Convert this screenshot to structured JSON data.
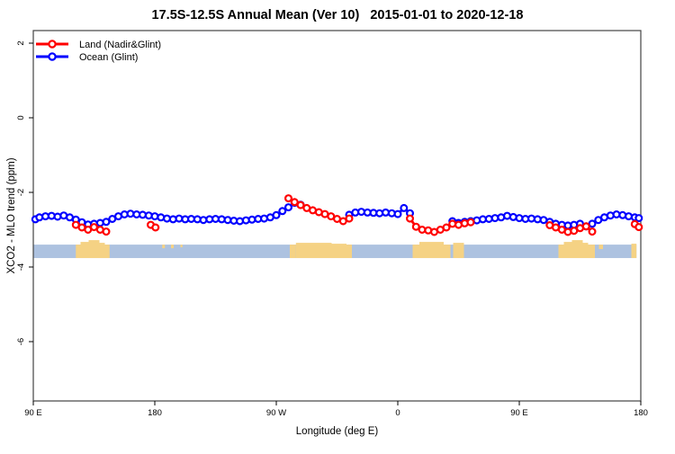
{
  "title": "17.5S-12.5S Annual Mean (Ver 10)   2015-01-01 to 2020-12-18",
  "axes": {
    "xlabel": "Longitude (deg E)",
    "ylabel": "XCO2 - MLO trend (ppm)"
  },
  "legend": {
    "items": [
      {
        "label": "Land (Nadir&Glint)",
        "color": "#ff0000"
      },
      {
        "label": "Ocean (Glint)",
        "color": "#0000ff"
      }
    ]
  },
  "colors": {
    "land_series": "#ff0000",
    "ocean_series": "#0000ff",
    "map_ocean_band": "#adc2e0",
    "map_land_patch": "#f5d284",
    "axis": "#444444"
  },
  "chart_data": {
    "type": "line",
    "title": "17.5S-12.5S Annual Mean (Ver 10)   2015-01-01 to 2020-12-18",
    "xlabel": "Longitude (deg E)",
    "ylabel": "XCO2 - MLO trend (ppm)",
    "x_range": [
      90,
      540
    ],
    "y_view_range": [
      2.34,
      -7.6
    ],
    "x_ticks": [
      {
        "p": 90,
        "label": "90 E"
      },
      {
        "p": 180,
        "label": "180"
      },
      {
        "p": 270,
        "label": "90 W"
      },
      {
        "p": 360,
        "label": "0"
      },
      {
        "p": 450,
        "label": "90 E"
      },
      {
        "p": 540,
        "label": "180"
      }
    ],
    "y_ticks": [
      {
        "v": 2,
        "label": "2"
      },
      {
        "v": 0,
        "label": "0"
      },
      {
        "v": -2,
        "label": "-2"
      },
      {
        "v": -4,
        "label": "-4"
      },
      {
        "v": -6,
        "label": "-6"
      }
    ],
    "series": [
      {
        "name": "Ocean (Glint)",
        "color": "#0000ff",
        "segments": [
          [
            [
              91.5,
              -2.72
            ],
            [
              94.5,
              -2.67
            ],
            [
              99,
              -2.64
            ],
            [
              103.5,
              -2.63
            ],
            [
              108,
              -2.65
            ],
            [
              112.5,
              -2.62
            ],
            [
              117,
              -2.67
            ],
            [
              121.5,
              -2.73
            ],
            [
              126,
              -2.8
            ],
            [
              130.5,
              -2.86
            ],
            [
              135,
              -2.84
            ],
            [
              139.5,
              -2.82
            ],
            [
              144,
              -2.79
            ],
            [
              148.5,
              -2.71
            ],
            [
              153,
              -2.64
            ],
            [
              157.5,
              -2.59
            ],
            [
              162,
              -2.57
            ],
            [
              166.5,
              -2.59
            ],
            [
              171,
              -2.6
            ],
            [
              175.5,
              -2.62
            ],
            [
              180,
              -2.64
            ],
            [
              184.5,
              -2.67
            ],
            [
              189,
              -2.7
            ],
            [
              193.5,
              -2.72
            ],
            [
              198,
              -2.7
            ],
            [
              202.5,
              -2.72
            ],
            [
              207,
              -2.71
            ],
            [
              211.5,
              -2.72
            ],
            [
              216,
              -2.74
            ],
            [
              220.5,
              -2.72
            ],
            [
              225,
              -2.71
            ],
            [
              229.5,
              -2.72
            ],
            [
              234,
              -2.74
            ],
            [
              238.5,
              -2.76
            ],
            [
              243,
              -2.77
            ],
            [
              247.5,
              -2.75
            ],
            [
              252,
              -2.73
            ],
            [
              256.5,
              -2.71
            ],
            [
              261,
              -2.7
            ],
            [
              265.5,
              -2.67
            ],
            [
              270,
              -2.61
            ],
            [
              274.5,
              -2.5
            ],
            [
              279,
              -2.4
            ],
            [
              283.5,
              -2.28
            ],
            [
              288,
              -2.33
            ]
          ],
          [
            [
              324,
              -2.6
            ],
            [
              328.5,
              -2.54
            ],
            [
              333,
              -2.52
            ],
            [
              337.5,
              -2.54
            ],
            [
              342,
              -2.55
            ],
            [
              346.5,
              -2.56
            ],
            [
              351,
              -2.54
            ],
            [
              355.5,
              -2.56
            ],
            [
              360,
              -2.58
            ],
            [
              364.5,
              -2.42
            ],
            [
              369,
              -2.56
            ]
          ],
          [
            [
              400.5,
              -2.77
            ],
            [
              405,
              -2.82
            ],
            [
              409.5,
              -2.79
            ],
            [
              414,
              -2.77
            ],
            [
              418.5,
              -2.75
            ],
            [
              423,
              -2.72
            ],
            [
              427.5,
              -2.71
            ],
            [
              432,
              -2.69
            ],
            [
              436.5,
              -2.67
            ],
            [
              441,
              -2.63
            ],
            [
              445.5,
              -2.66
            ],
            [
              450,
              -2.69
            ],
            [
              454.5,
              -2.71
            ],
            [
              459,
              -2.7
            ],
            [
              463.5,
              -2.72
            ],
            [
              468,
              -2.74
            ],
            [
              472.5,
              -2.79
            ],
            [
              477,
              -2.84
            ],
            [
              481.5,
              -2.87
            ],
            [
              486,
              -2.89
            ],
            [
              490.5,
              -2.87
            ],
            [
              495,
              -2.84
            ],
            [
              499.5,
              -2.91
            ],
            [
              504,
              -2.84
            ],
            [
              508.5,
              -2.74
            ],
            [
              513,
              -2.67
            ],
            [
              517.5,
              -2.62
            ],
            [
              522,
              -2.59
            ],
            [
              526.5,
              -2.61
            ],
            [
              531,
              -2.64
            ],
            [
              535.5,
              -2.67
            ],
            [
              538.5,
              -2.69
            ]
          ]
        ]
      },
      {
        "name": "Land (Nadir&Glint)",
        "color": "#ff0000",
        "segments": [
          [
            [
              121.5,
              -2.87
            ],
            [
              126,
              -2.94
            ],
            [
              130.5,
              -3.0
            ],
            [
              135,
              -2.93
            ],
            [
              139.5,
              -3.0
            ],
            [
              144,
              -3.05
            ]
          ],
          [
            [
              177,
              -2.87
            ],
            [
              180.5,
              -2.94
            ]
          ],
          [
            [
              279,
              -2.16
            ],
            [
              283.5,
              -2.26
            ],
            [
              288,
              -2.34
            ],
            [
              292.5,
              -2.42
            ],
            [
              297,
              -2.48
            ],
            [
              301.5,
              -2.53
            ],
            [
              306,
              -2.58
            ],
            [
              310.5,
              -2.64
            ],
            [
              315,
              -2.71
            ],
            [
              319.5,
              -2.77
            ],
            [
              324,
              -2.7
            ]
          ],
          [
            [
              369,
              -2.7
            ],
            [
              373.5,
              -2.92
            ],
            [
              378,
              -3.0
            ],
            [
              382.5,
              -3.02
            ],
            [
              387,
              -3.06
            ],
            [
              391.5,
              -3.0
            ],
            [
              396,
              -2.94
            ],
            [
              400.5,
              -2.84
            ],
            [
              405,
              -2.87
            ],
            [
              409.5,
              -2.83
            ],
            [
              414,
              -2.8
            ]
          ],
          [
            [
              472.5,
              -2.88
            ],
            [
              477,
              -2.94
            ],
            [
              481.5,
              -3.0
            ],
            [
              486,
              -3.06
            ],
            [
              490.5,
              -3.03
            ],
            [
              495,
              -2.96
            ],
            [
              499.5,
              -2.91
            ],
            [
              504,
              -3.05
            ]
          ],
          [
            [
              535.5,
              -2.85
            ],
            [
              538.5,
              -2.93
            ]
          ]
        ]
      }
    ],
    "map_band": {
      "x_from": 90,
      "x_to": 536.8,
      "v_top": -3.4,
      "v_bottom": -3.76,
      "land_patches": [
        {
          "from": 121.5,
          "to": 125,
          "rise": 0
        },
        {
          "from": 125,
          "to": 131,
          "rise": 3
        },
        {
          "from": 131,
          "to": 139,
          "rise": 5
        },
        {
          "from": 139,
          "to": 143,
          "rise": 2
        },
        {
          "from": 143,
          "to": 146.5,
          "rise": 0
        },
        {
          "from": 185.5,
          "to": 187.5,
          "h": 4
        },
        {
          "from": 192,
          "to": 194,
          "h": 4
        },
        {
          "from": 199,
          "to": 200.5,
          "h": 3
        },
        {
          "from": 280,
          "to": 284.5,
          "rise": 0
        },
        {
          "from": 284.5,
          "to": 311,
          "rise": 2
        },
        {
          "from": 311,
          "to": 322,
          "rise": 1
        },
        {
          "from": 322,
          "to": 326,
          "rise": 0
        },
        {
          "from": 371,
          "to": 376,
          "rise": 0
        },
        {
          "from": 376,
          "to": 394,
          "rise": 3
        },
        {
          "from": 394,
          "to": 399,
          "rise": 0
        },
        {
          "from": 401,
          "to": 409,
          "rise": 2
        },
        {
          "from": 479,
          "to": 483,
          "rise": 0
        },
        {
          "from": 483,
          "to": 489,
          "rise": 3
        },
        {
          "from": 489,
          "to": 497,
          "rise": 5
        },
        {
          "from": 497,
          "to": 501,
          "rise": 2
        },
        {
          "from": 501,
          "to": 506,
          "rise": 0
        },
        {
          "from": 509,
          "to": 512,
          "h": 5
        },
        {
          "from": 533,
          "to": 536.8,
          "rise": 1
        }
      ]
    },
    "legend_position": "top-left",
    "grid": false
  }
}
